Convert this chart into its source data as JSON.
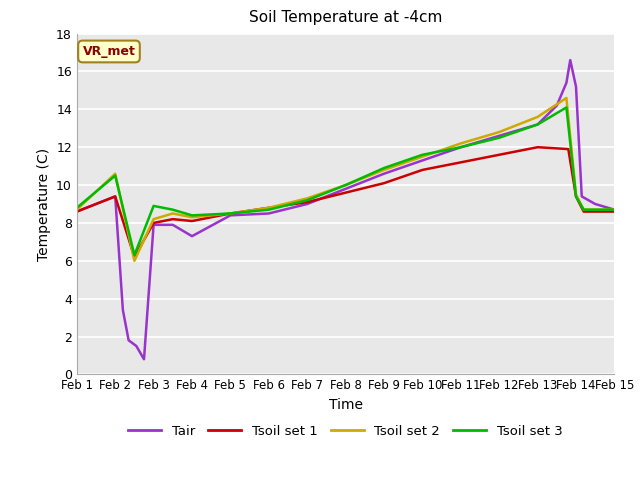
{
  "title": "Soil Temperature at -4cm",
  "xlabel": "Time",
  "ylabel": "Temperature (C)",
  "annotation": "VR_met",
  "xlim": [
    1,
    15
  ],
  "ylim": [
    0,
    18
  ],
  "yticks": [
    0,
    2,
    4,
    6,
    8,
    10,
    12,
    14,
    16,
    18
  ],
  "xtick_labels": [
    "Feb 1",
    "Feb 2",
    "Feb 3",
    "Feb 4",
    "Feb 5",
    "Feb 6",
    "Feb 7",
    "Feb 8",
    "Feb 9",
    "Feb 10",
    "Feb 11",
    "Feb 12",
    "Feb 13",
    "Feb 14",
    "Feb 15"
  ],
  "xtick_positions": [
    1,
    2,
    3,
    4,
    5,
    6,
    7,
    8,
    9,
    10,
    11,
    12,
    13,
    14,
    15
  ],
  "plot_bg": "#e8e8e8",
  "fig_bg": "#ffffff",
  "series": [
    {
      "label": "Tair",
      "color": "#9933cc",
      "linewidth": 1.8,
      "x": [
        1,
        2,
        2.2,
        2.35,
        2.55,
        2.75,
        3.0,
        3.5,
        4,
        5,
        6,
        7,
        8,
        9,
        10,
        11,
        12,
        13,
        13.5,
        13.75,
        13.85,
        14.0,
        14.15,
        14.5,
        15
      ],
      "y": [
        8.6,
        9.4,
        3.4,
        1.8,
        1.5,
        0.8,
        7.9,
        7.9,
        7.3,
        8.4,
        8.5,
        9.0,
        9.8,
        10.6,
        11.3,
        12.0,
        12.6,
        13.2,
        14.2,
        15.4,
        16.6,
        15.2,
        9.4,
        9.0,
        8.7
      ]
    },
    {
      "label": "Tsoil set 1",
      "color": "#cc0000",
      "linewidth": 1.8,
      "x": [
        1,
        2,
        2.5,
        3,
        3.5,
        4,
        5,
        6,
        7,
        8,
        9,
        10,
        11,
        12,
        13,
        13.8,
        14.0,
        14.2,
        15
      ],
      "y": [
        8.6,
        9.4,
        6.2,
        8.0,
        8.2,
        8.1,
        8.5,
        8.8,
        9.1,
        9.6,
        10.1,
        10.8,
        11.2,
        11.6,
        12.0,
        11.9,
        9.4,
        8.6,
        8.6
      ]
    },
    {
      "label": "Tsoil set 2",
      "color": "#ccaa00",
      "linewidth": 1.8,
      "x": [
        1,
        2,
        2.5,
        3,
        3.5,
        4,
        5,
        6,
        7,
        8,
        9,
        10,
        11,
        12,
        13,
        13.75,
        14.0,
        14.2,
        15
      ],
      "y": [
        8.7,
        10.6,
        6.0,
        8.2,
        8.5,
        8.3,
        8.5,
        8.8,
        9.3,
        10.0,
        10.8,
        11.5,
        12.2,
        12.8,
        13.6,
        14.6,
        9.5,
        8.7,
        8.7
      ]
    },
    {
      "label": "Tsoil set 3",
      "color": "#00bb00",
      "linewidth": 1.8,
      "x": [
        1,
        2,
        2.5,
        3,
        3.5,
        4,
        5,
        6,
        7,
        8,
        9,
        10,
        11,
        12,
        13,
        13.75,
        14.0,
        14.2,
        15
      ],
      "y": [
        8.8,
        10.5,
        6.3,
        8.9,
        8.7,
        8.4,
        8.5,
        8.7,
        9.2,
        10.0,
        10.9,
        11.6,
        12.0,
        12.5,
        13.2,
        14.1,
        9.4,
        8.7,
        8.7
      ]
    }
  ],
  "legend_entries": [
    {
      "label": "Tair",
      "color": "#9933cc"
    },
    {
      "label": "Tsoil set 1",
      "color": "#cc0000"
    },
    {
      "label": "Tsoil set 2",
      "color": "#ccaa00"
    },
    {
      "label": "Tsoil set 3",
      "color": "#00bb00"
    }
  ]
}
